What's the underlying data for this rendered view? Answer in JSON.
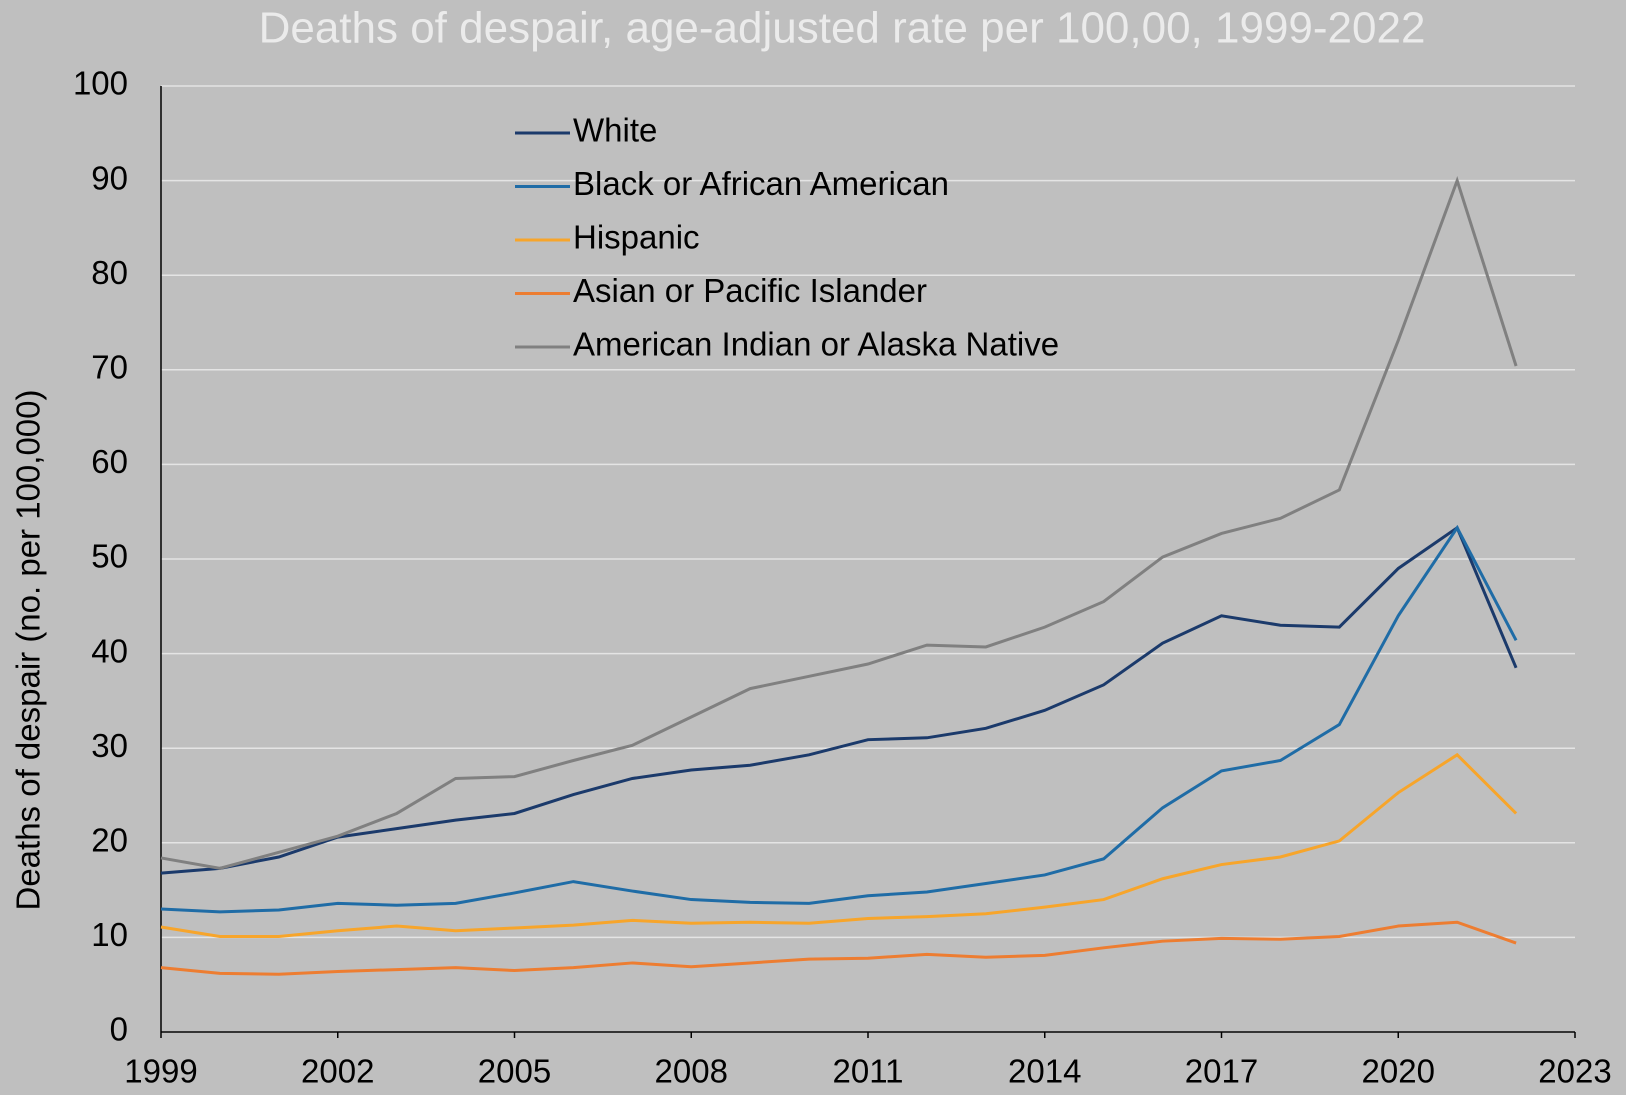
{
  "chart_data": {
    "type": "line",
    "title": "Deaths of despair, age-adjusted rate per 100,00, 1999-2022",
    "y_label": "Deaths of despair (no. per 100,000)",
    "x": [
      1999,
      2000,
      2001,
      2002,
      2003,
      2004,
      2005,
      2006,
      2007,
      2008,
      2009,
      2010,
      2011,
      2012,
      2013,
      2014,
      2015,
      2016,
      2017,
      2018,
      2019,
      2020,
      2021,
      2022
    ],
    "xlim": [
      1999,
      2023
    ],
    "xticks": [
      1999,
      2002,
      2005,
      2008,
      2011,
      2014,
      2017,
      2020,
      2023
    ],
    "ylim": [
      0,
      100
    ],
    "yticks": [
      0,
      10,
      20,
      30,
      40,
      50,
      60,
      70,
      80,
      90,
      100
    ],
    "grid": true,
    "legend": "top",
    "series": [
      {
        "name": "White",
        "color": "#1b3a6b",
        "values": [
          16.8,
          17.3,
          18.5,
          20.6,
          21.5,
          22.4,
          23.1,
          25.1,
          26.8,
          27.7,
          28.2,
          29.3,
          30.9,
          31.1,
          32.1,
          34.0,
          36.7,
          41.1,
          44.0,
          43.0,
          42.8,
          49.0,
          53.3,
          38.5
        ]
      },
      {
        "name": "Black or African American",
        "color": "#1f6ca6",
        "values": [
          13.0,
          12.7,
          12.9,
          13.6,
          13.4,
          13.6,
          14.7,
          15.9,
          14.9,
          14.0,
          13.7,
          13.6,
          14.4,
          14.8,
          15.7,
          16.6,
          18.3,
          23.7,
          27.6,
          28.7,
          32.5,
          44.0,
          53.3,
          41.4
        ]
      },
      {
        "name": "Hispanic",
        "color": "#f7a52b",
        "values": [
          11.1,
          10.1,
          10.1,
          10.7,
          11.2,
          10.7,
          11.0,
          11.3,
          11.8,
          11.5,
          11.6,
          11.5,
          12.0,
          12.2,
          12.5,
          13.2,
          14.0,
          16.2,
          17.7,
          18.5,
          20.2,
          25.3,
          29.3,
          23.1
        ]
      },
      {
        "name": "Asian or Pacific Islander",
        "color": "#ed7d31",
        "values": [
          6.8,
          6.2,
          6.1,
          6.4,
          6.6,
          6.8,
          6.5,
          6.8,
          7.3,
          6.9,
          7.3,
          7.7,
          7.8,
          8.2,
          7.9,
          8.1,
          8.9,
          9.6,
          9.9,
          9.8,
          10.1,
          11.2,
          11.6,
          9.4
        ]
      },
      {
        "name": "American Indian or Alaska Native",
        "color": "#808080",
        "values": [
          18.4,
          17.3,
          19.0,
          20.7,
          23.1,
          26.8,
          27.0,
          28.7,
          30.3,
          33.3,
          36.3,
          37.6,
          38.9,
          40.9,
          40.7,
          42.8,
          45.5,
          50.2,
          52.7,
          54.3,
          57.3,
          73.1,
          90.0,
          70.4
        ]
      }
    ]
  }
}
